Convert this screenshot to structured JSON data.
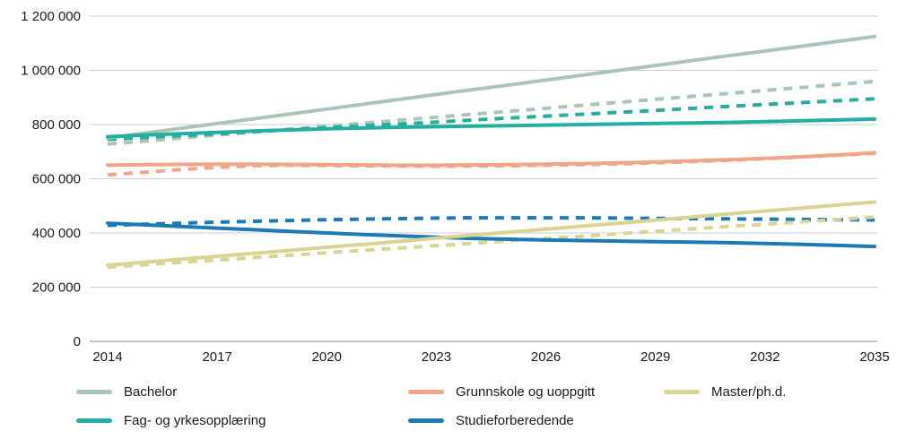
{
  "chart_data": {
    "type": "line",
    "title": "",
    "xlabel": "",
    "ylabel": "",
    "ylim": [
      0,
      1200000
    ],
    "grid": true,
    "legend_position": "bottom",
    "x": [
      2014,
      2015,
      2016,
      2017,
      2018,
      2019,
      2020,
      2021,
      2022,
      2023,
      2024,
      2025,
      2026,
      2027,
      2028,
      2029,
      2030,
      2031,
      2032,
      2033,
      2034,
      2035
    ],
    "x_ticks": [
      2014,
      2017,
      2020,
      2023,
      2026,
      2029,
      2032,
      2035
    ],
    "y_ticks": [
      0,
      200000,
      400000,
      600000,
      800000,
      1000000,
      1200000
    ],
    "y_tick_labels": [
      "0",
      "200 000",
      "400 000",
      "600 000",
      "800 000",
      "1 000 000",
      "1 200 000"
    ],
    "colors": {
      "grid": "#cccccc",
      "axis": "#8c8c8c"
    },
    "series": [
      {
        "name": "Bachelor",
        "slug": "bachelor",
        "style": "solid",
        "color": "#a9c6b4",
        "values": [
          750000,
          768000,
          786000,
          804000,
          821000,
          839000,
          857000,
          875000,
          893000,
          911000,
          929000,
          946000,
          964000,
          982000,
          1000000,
          1018000,
          1036000,
          1054000,
          1071000,
          1089000,
          1107000,
          1125000
        ]
      },
      {
        "name": "Bachelor",
        "slug": "bachelor",
        "style": "dashed",
        "color": "#a9c6b4",
        "values": [
          728000,
          739000,
          750000,
          761000,
          772000,
          783000,
          794000,
          805000,
          816000,
          827000,
          838000,
          849000,
          860000,
          871000,
          882000,
          893000,
          904000,
          915000,
          926000,
          937000,
          948000,
          959000
        ]
      },
      {
        "name": "Fag- og yrkesopplæring",
        "slug": "fag-og-yrkesopplaering",
        "style": "solid",
        "color": "#23af9f",
        "values": [
          755000,
          761000,
          766000,
          771000,
          776000,
          780000,
          784000,
          787000,
          790000,
          792000,
          794000,
          796000,
          798000,
          800000,
          802000,
          804000,
          806000,
          808000,
          811000,
          814000,
          817000,
          820000
        ]
      },
      {
        "name": "Fag- og yrkesopplæring",
        "slug": "fag-og-yrkesopplaering",
        "style": "dashed",
        "color": "#23af9f",
        "values": [
          745000,
          752000,
          759000,
          766000,
          774000,
          781000,
          788000,
          795000,
          802000,
          809000,
          817000,
          824000,
          831000,
          838000,
          845000,
          852000,
          860000,
          867000,
          874000,
          881000,
          888000,
          895000
        ]
      },
      {
        "name": "Grunnskole og uoppgitt",
        "slug": "grunnskole-og-uoppgitt",
        "style": "solid",
        "color": "#f0a488",
        "values": [
          650000,
          652000,
          653000,
          654000,
          654000,
          653000,
          652000,
          651000,
          650000,
          650000,
          651000,
          652000,
          654000,
          656000,
          659000,
          662000,
          666000,
          670000,
          675000,
          681000,
          688000,
          696000
        ]
      },
      {
        "name": "Grunnskole og uoppgitt",
        "slug": "grunnskole-og-uoppgitt",
        "style": "dashed",
        "color": "#f0a488",
        "values": [
          614000,
          624000,
          634000,
          642000,
          648000,
          650000,
          649000,
          648000,
          647000,
          646000,
          647000,
          648000,
          650000,
          652000,
          655000,
          659000,
          663000,
          668000,
          674000,
          680000,
          687000,
          694000
        ]
      },
      {
        "name": "Studieforberedende",
        "slug": "studieforberedende",
        "style": "solid",
        "color": "#1b7ab5",
        "values": [
          436000,
          430000,
          424000,
          418000,
          412000,
          406000,
          400000,
          394000,
          389000,
          384000,
          380000,
          377000,
          374000,
          372000,
          370000,
          368000,
          366000,
          364000,
          361000,
          358000,
          354000,
          350000
        ]
      },
      {
        "name": "Studieforberedende",
        "slug": "studieforberedende",
        "style": "dashed",
        "color": "#1b7ab5",
        "values": [
          428000,
          432000,
          436000,
          440000,
          443000,
          446000,
          449000,
          451000,
          453000,
          455000,
          456000,
          456000,
          456000,
          456000,
          455000,
          454000,
          453000,
          452000,
          451000,
          450000,
          449000,
          448000
        ]
      },
      {
        "name": "Master/ph.d.",
        "slug": "master-phd",
        "style": "solid",
        "color": "#d8d492",
        "values": [
          281000,
          292000,
          303000,
          314000,
          325000,
          336000,
          347000,
          358000,
          369000,
          381000,
          392000,
          403000,
          414000,
          425000,
          436000,
          447000,
          459000,
          470000,
          481000,
          492000,
          503000,
          514000
        ]
      },
      {
        "name": "Master/ph.d.",
        "slug": "master-phd",
        "style": "dashed",
        "color": "#d8d492",
        "values": [
          274000,
          283000,
          292000,
          300000,
          309000,
          318000,
          327000,
          336000,
          344000,
          353000,
          362000,
          371000,
          380000,
          388000,
          397000,
          406000,
          415000,
          424000,
          432000,
          441000,
          450000,
          459000
        ]
      }
    ],
    "legend": [
      {
        "label": "Bachelor",
        "slug": "bachelor",
        "color": "#a9c6b4"
      },
      {
        "label": "Grunnskole og uoppgitt",
        "slug": "grunnskole-og-uoppgitt",
        "color": "#f0a488"
      },
      {
        "label": "Master/ph.d.",
        "slug": "master-phd",
        "color": "#d8d492"
      },
      {
        "label": "Fag- og yrkesopplæring",
        "slug": "fag-og-yrkesopplaering",
        "color": "#23af9f"
      },
      {
        "label": "Studieforberedende",
        "slug": "studieforberedende",
        "color": "#1b7ab5"
      }
    ]
  }
}
